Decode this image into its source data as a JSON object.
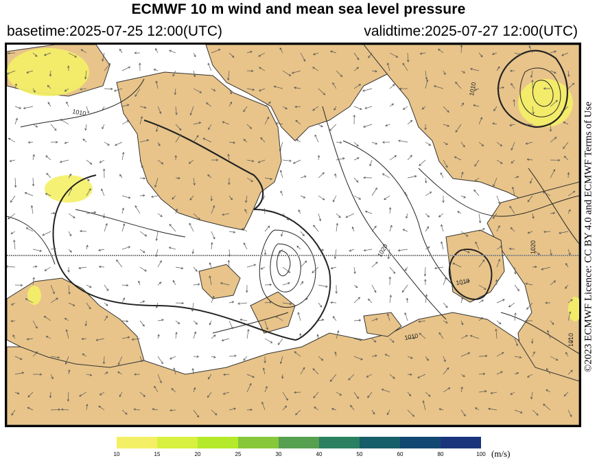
{
  "header": {
    "title": "ECMWF 10 m wind and mean sea level pressure",
    "basetime": "basetime:2025-07-25 12:00(UTC)",
    "validtime": "validtime:2025-07-27 12:00(UTC)"
  },
  "licence": "©2023 ECMWF Licence: CC BY 4.0 and ECMWF Terms of Use",
  "map": {
    "colors": {
      "land": "#e8c48a",
      "sea": "#ffffff",
      "isobar": "#222222",
      "wind_highlight": "#f4f066"
    },
    "isobar_labels": [
      "1010",
      "1010",
      "1020",
      "1010",
      "1010",
      "1020",
      "1010"
    ]
  },
  "colorbar": {
    "unit": "(m/s)",
    "ticks": [
      "10",
      "15",
      "20",
      "25",
      "30",
      "40",
      "50",
      "60",
      "80",
      "100"
    ],
    "colors": [
      "#f4f066",
      "#d8f040",
      "#b4ea2a",
      "#86c83a",
      "#56a050",
      "#2a8060",
      "#165e68",
      "#104872",
      "#1a347c",
      "#2a2ea0"
    ]
  }
}
